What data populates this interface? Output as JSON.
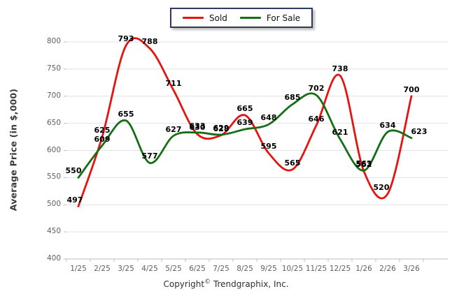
{
  "chart_data": {
    "type": "line",
    "categories": [
      "1/25",
      "2/25",
      "3/25",
      "4/25",
      "5/25",
      "6/25",
      "7/25",
      "8/25",
      "9/25",
      "10/25",
      "11/25",
      "12/25",
      "1/26",
      "2/26",
      "3/26"
    ],
    "series": [
      {
        "name": "Sold",
        "color": "#e41413",
        "values": [
          497,
          625,
          793,
          788,
          711,
          630,
          628,
          665,
          595,
          565,
          646,
          738,
          562,
          520,
          700
        ]
      },
      {
        "name": "For Sale",
        "color": "#146f14",
        "values": [
          550,
          609,
          655,
          577,
          627,
          633,
          629,
          639,
          648,
          685,
          702,
          621,
          563,
          634,
          623
        ]
      }
    ],
    "title": "",
    "xlabel": "",
    "ylabel": "Average Price (in $,000)",
    "ylim": [
      400,
      800
    ],
    "ytick_step": 50,
    "grid": true,
    "legend_position": "top-center",
    "smoothing": "spline"
  },
  "legend": {
    "items": [
      {
        "label": "Sold",
        "color": "#e41413"
      },
      {
        "label": "For Sale",
        "color": "#146f14"
      }
    ]
  },
  "axis": {
    "ylabel": "Average Price (in $,000)"
  },
  "footer": {
    "copyright_word": "Copyright",
    "copyright_symbol": "©",
    "company": "Trendgraphix, Inc."
  },
  "colors": {
    "grid": "#e2e2e2",
    "axis": "#bdbdbd",
    "tick_text": "#5f5f5f",
    "legend_border": "#2b3a5e"
  }
}
